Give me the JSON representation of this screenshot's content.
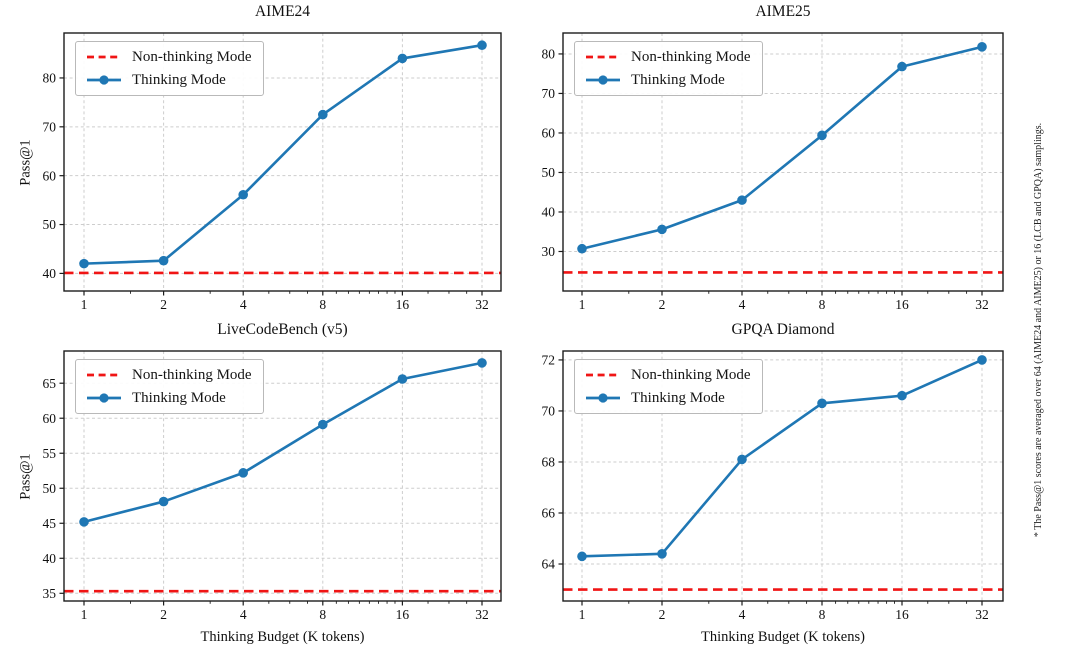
{
  "figure": {
    "legend": {
      "non_thinking": "Non-thinking Mode",
      "thinking": "Thinking Mode"
    },
    "side_note": "* The Pass@1 scores are averaged over 64 (AIME24 and AIME25) or 16 (LCB and GPQA) samplings.",
    "colors": {
      "thinking": "#1f77b4",
      "non_thinking": "#f01515",
      "grid": "#cdcdcd",
      "spine": "#1c1c1c"
    },
    "axis": {
      "xscale": "log2",
      "x_tick_labels": [
        "1",
        "2",
        "4",
        "8",
        "16",
        "32"
      ],
      "x_minor_ticks": [
        1.5,
        3,
        5,
        6,
        7,
        9,
        10,
        11,
        12,
        13,
        14,
        15,
        20,
        24,
        28
      ]
    }
  },
  "chart_data": [
    {
      "type": "line",
      "title": "AIME24",
      "ylabel": "Pass@1",
      "xlabel": "",
      "x": [
        1,
        2,
        4,
        8,
        16,
        32
      ],
      "series": [
        {
          "name": "Non-thinking Mode",
          "type": "hline",
          "value": 40.1
        },
        {
          "name": "Thinking Mode",
          "type": "marker-line",
          "values": [
            42.0,
            42.6,
            56.1,
            72.5,
            84.0,
            86.7
          ]
        }
      ],
      "yticks": [
        40,
        50,
        60,
        70,
        80
      ],
      "ylim": [
        36.4,
        89.2
      ],
      "grid": true,
      "legend_position": "upper left"
    },
    {
      "type": "line",
      "title": "AIME25",
      "ylabel": "",
      "xlabel": "",
      "x": [
        1,
        2,
        4,
        8,
        16,
        32
      ],
      "series": [
        {
          "name": "Non-thinking Mode",
          "type": "hline",
          "value": 24.7
        },
        {
          "name": "Thinking Mode",
          "type": "marker-line",
          "values": [
            30.7,
            35.6,
            43.0,
            59.4,
            76.8,
            81.8
          ]
        }
      ],
      "yticks": [
        30,
        40,
        50,
        60,
        70,
        80
      ],
      "ylim": [
        20.0,
        85.3
      ],
      "grid": true,
      "legend_position": "upper left"
    },
    {
      "type": "line",
      "title": "LiveCodeBench (v5)",
      "ylabel": "Pass@1",
      "xlabel": "Thinking Budget (K tokens)",
      "x": [
        1,
        2,
        4,
        8,
        16,
        32
      ],
      "series": [
        {
          "name": "Non-thinking Mode",
          "type": "hline",
          "value": 35.3
        },
        {
          "name": "Thinking Mode",
          "type": "marker-line",
          "values": [
            45.2,
            48.1,
            52.2,
            59.1,
            65.6,
            67.9
          ]
        }
      ],
      "yticks": [
        35,
        40,
        45,
        50,
        55,
        60,
        65
      ],
      "ylim": [
        33.9,
        69.6
      ],
      "grid": true,
      "legend_position": "upper left"
    },
    {
      "type": "line",
      "title": "GPQA Diamond",
      "ylabel": "",
      "xlabel": "Thinking Budget (K tokens)",
      "x": [
        1,
        2,
        4,
        8,
        16,
        32
      ],
      "series": [
        {
          "name": "Non-thinking Mode",
          "type": "hline",
          "value": 63.0
        },
        {
          "name": "Thinking Mode",
          "type": "marker-line",
          "values": [
            64.3,
            64.4,
            68.1,
            70.3,
            70.6,
            72.0
          ]
        }
      ],
      "yticks": [
        64,
        66,
        68,
        70,
        72
      ],
      "ylim": [
        62.55,
        72.35
      ],
      "grid": true,
      "legend_position": "upper left"
    }
  ]
}
